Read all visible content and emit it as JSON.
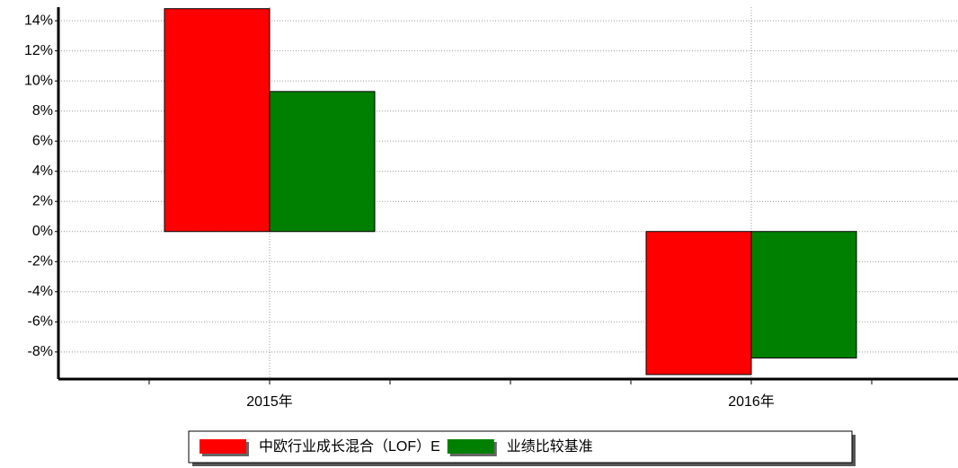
{
  "chart_data": {
    "type": "bar",
    "categories": [
      "2015年",
      "2016年"
    ],
    "series": [
      {
        "name": "中欧行业成长混合（LOF）E",
        "color": "#ff0000",
        "values": [
          14.8,
          -9.5
        ]
      },
      {
        "name": "业绩比较基准",
        "color": "#008000",
        "values": [
          9.3,
          -8.4
        ]
      }
    ],
    "ylim": [
      -9.8,
      14.9
    ],
    "yticks": [
      {
        "value": -8,
        "label": "-8%"
      },
      {
        "value": -6,
        "label": "-6%"
      },
      {
        "value": -4,
        "label": "-4%"
      },
      {
        "value": -2,
        "label": "-2%"
      },
      {
        "value": 0,
        "label": "0%"
      },
      {
        "value": 2,
        "label": "2%"
      },
      {
        "value": 4,
        "label": "4%"
      },
      {
        "value": 6,
        "label": "6%"
      },
      {
        "value": 8,
        "label": "8%"
      },
      {
        "value": 10,
        "label": "10%"
      },
      {
        "value": 12,
        "label": "12%"
      },
      {
        "value": 14,
        "label": "14%"
      }
    ],
    "grid": true,
    "legend": "bottom"
  }
}
